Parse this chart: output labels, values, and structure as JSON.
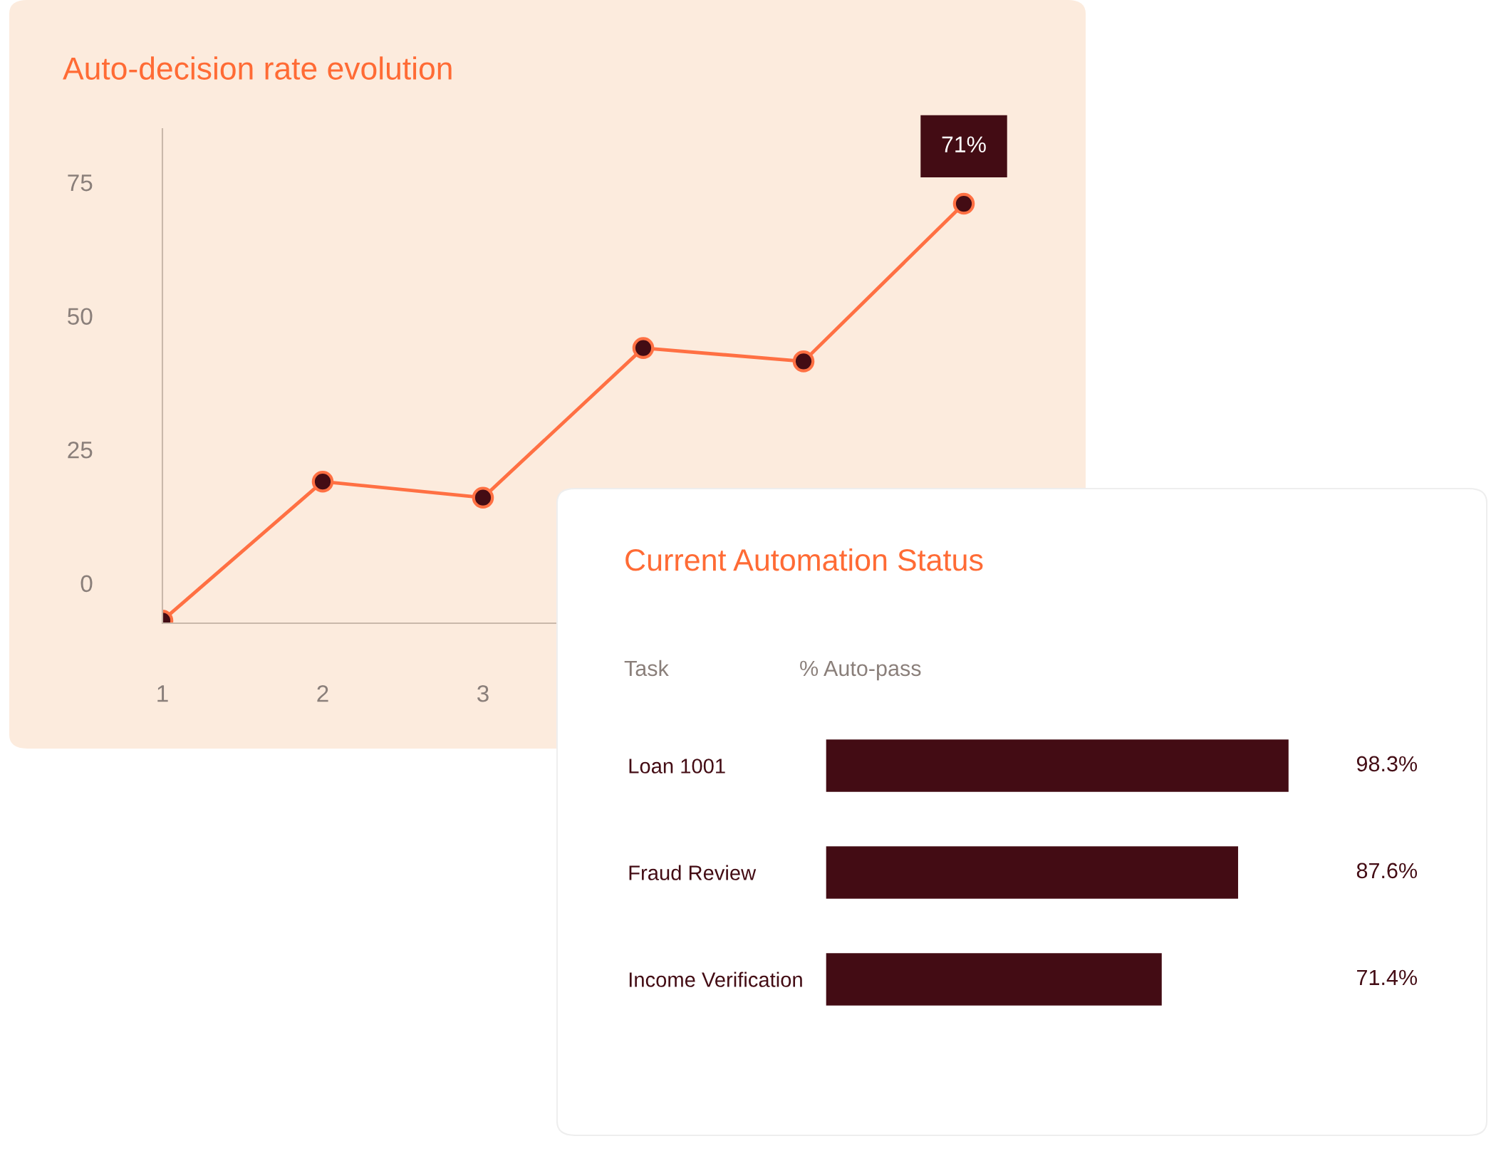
{
  "chart_data": [
    {
      "type": "line",
      "title": "Auto-decision rate evolution",
      "x": [
        1,
        2,
        3,
        4,
        5,
        6
      ],
      "values": [
        -7,
        19,
        16,
        44,
        41.5,
        71
      ],
      "color": "#ff7043",
      "marker": "circle",
      "line_style": "solid",
      "xlim": [
        1,
        6.4
      ],
      "xticks": [
        1,
        2,
        3
      ],
      "ylim": [
        -7.5,
        85
      ],
      "yticks": [
        0,
        25,
        50,
        75
      ],
      "annotations": [
        {
          "text": "71%",
          "x": 6,
          "y": 71
        }
      ]
    },
    {
      "type": "bar",
      "orientation": "horizontal",
      "title": "Current Automation Status",
      "ylabel": "Task",
      "xlabel": "% Auto-pass",
      "categories": [
        "Loan 1001",
        "Fraud Review",
        "Income Verification"
      ],
      "tick_labels": "y",
      "series": [
        {
          "color": "#430c14",
          "values": [
            98.3,
            87.6,
            71.4
          ],
          "value_labels": [
            "98.3%",
            "87.6%",
            "71.4%"
          ]
        }
      ]
    }
  ]
}
